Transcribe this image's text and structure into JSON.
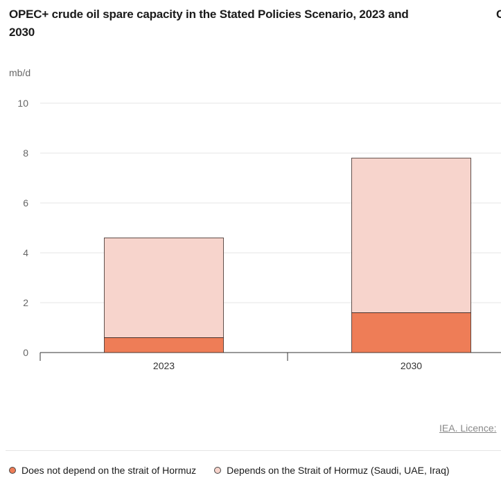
{
  "title": "OPEC+ crude oil spare capacity in the Stated Policies Scenario, 2023 and 2030",
  "next_title_fragment": "C",
  "licence": "IEA. Licence:",
  "chart_data": {
    "type": "bar",
    "stacked": true,
    "title": "OPEC+ crude oil spare capacity in the Stated Policies Scenario, 2023 and 2030",
    "ylabel": "mb/d",
    "xlabel": "",
    "ylim": [
      0,
      10
    ],
    "yticks": [
      "0",
      "2",
      "4",
      "6",
      "8",
      "10"
    ],
    "grid": true,
    "categories": [
      "2023",
      "2030"
    ],
    "series": [
      {
        "name": "Does not depend on the strait of Hormuz",
        "color": "#ee7d57",
        "values": [
          0.6,
          1.6
        ]
      },
      {
        "name": "Depends on the Strait of Hormuz (Saudi, UAE, Iraq)",
        "color": "#f7d4cc",
        "values": [
          4.0,
          6.2
        ]
      }
    ],
    "legend_position": "bottom"
  }
}
